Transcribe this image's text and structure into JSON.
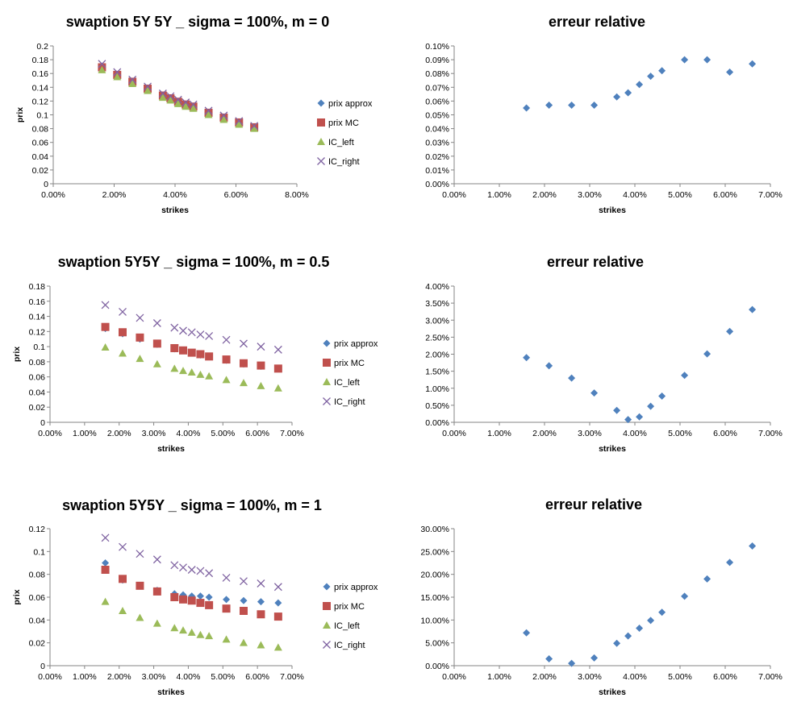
{
  "colors": {
    "prix_approx": "#4f81bd",
    "prix_MC": "#c0504d",
    "IC_left": "#9bbb59",
    "IC_right": "#8064a2",
    "axis": "#868686"
  },
  "chart_data": [
    {
      "type": "scatter",
      "title": "swaption 5Y 5Y _ sigma = 100%, m = 0",
      "xlabel": "strikes",
      "ylabel": "prix",
      "xlim": [
        0,
        0.08
      ],
      "ylim": [
        0,
        0.2
      ],
      "xticks": [
        "0.00%",
        "2.00%",
        "4.00%",
        "6.00%",
        "8.00%"
      ],
      "yticks": [
        "0",
        "0.02",
        "0.04",
        "0.06",
        "0.08",
        "0.1",
        "0.12",
        "0.14",
        "0.16",
        "0.18",
        "0.2"
      ],
      "legend": "right",
      "x": [
        0.016,
        0.021,
        0.026,
        0.031,
        0.036,
        0.0385,
        0.041,
        0.0435,
        0.046,
        0.051,
        0.056,
        0.061,
        0.066
      ],
      "series": [
        {
          "name": "prix approx",
          "marker": "diamond",
          "values": [
            0.169,
            0.158,
            0.148,
            0.138,
            0.128,
            0.124,
            0.119,
            0.115,
            0.112,
            0.103,
            0.096,
            0.089,
            0.082
          ]
        },
        {
          "name": "prix MC",
          "marker": "square",
          "values": [
            0.169,
            0.158,
            0.148,
            0.138,
            0.128,
            0.124,
            0.119,
            0.115,
            0.112,
            0.103,
            0.096,
            0.089,
            0.082
          ]
        },
        {
          "name": "IC_left",
          "marker": "triangle",
          "values": [
            0.165,
            0.155,
            0.145,
            0.135,
            0.125,
            0.121,
            0.116,
            0.112,
            0.109,
            0.1,
            0.093,
            0.086,
            0.08
          ]
        },
        {
          "name": "IC_right",
          "marker": "x",
          "values": [
            0.174,
            0.162,
            0.151,
            0.141,
            0.131,
            0.127,
            0.122,
            0.118,
            0.115,
            0.106,
            0.099,
            0.091,
            0.084
          ]
        }
      ]
    },
    {
      "type": "scatter",
      "title": "erreur relative",
      "xlabel": "strikes",
      "ylabel": "",
      "xlim": [
        0,
        0.07
      ],
      "ylim": [
        0,
        0.001
      ],
      "xticks": [
        "0.00%",
        "1.00%",
        "2.00%",
        "3.00%",
        "4.00%",
        "5.00%",
        "6.00%",
        "7.00%"
      ],
      "yticks": [
        "0.00%",
        "0.01%",
        "0.02%",
        "0.03%",
        "0.04%",
        "0.05%",
        "0.06%",
        "0.07%",
        "0.08%",
        "0.09%",
        "0.10%"
      ],
      "x": [
        0.016,
        0.021,
        0.026,
        0.031,
        0.036,
        0.0385,
        0.041,
        0.0435,
        0.046,
        0.051,
        0.056,
        0.061,
        0.066
      ],
      "series": [
        {
          "marker": "diamond",
          "values": [
            0.00055,
            0.00057,
            0.00057,
            0.00057,
            0.00063,
            0.00066,
            0.00072,
            0.00078,
            0.00082,
            0.0009,
            0.0009,
            0.00081,
            0.00087
          ]
        }
      ]
    },
    {
      "type": "scatter",
      "title": "swaption 5Y5Y _ sigma = 100%, m = 0.5",
      "xlabel": "strikes",
      "ylabel": "prix",
      "xlim": [
        0,
        0.07
      ],
      "ylim": [
        0,
        0.18
      ],
      "xticks": [
        "0.00%",
        "1.00%",
        "2.00%",
        "3.00%",
        "4.00%",
        "5.00%",
        "6.00%",
        "7.00%"
      ],
      "yticks": [
        "0",
        "0.02",
        "0.04",
        "0.06",
        "0.08",
        "0.1",
        "0.12",
        "0.14",
        "0.16",
        "0.18"
      ],
      "legend": "right",
      "x": [
        0.016,
        0.021,
        0.026,
        0.031,
        0.036,
        0.0385,
        0.041,
        0.0435,
        0.046,
        0.051,
        0.056,
        0.061,
        0.066
      ],
      "series": [
        {
          "name": "prix approx",
          "marker": "diamond",
          "values": [
            0.124,
            0.117,
            0.11,
            0.103,
            0.097,
            0.095,
            0.092,
            0.089,
            0.087,
            0.082,
            0.077,
            0.074,
            0.071
          ]
        },
        {
          "name": "prix MC",
          "marker": "square",
          "values": [
            0.126,
            0.119,
            0.112,
            0.104,
            0.098,
            0.095,
            0.092,
            0.09,
            0.087,
            0.083,
            0.078,
            0.075,
            0.071
          ]
        },
        {
          "name": "IC_left",
          "marker": "triangle",
          "values": [
            0.099,
            0.091,
            0.084,
            0.077,
            0.071,
            0.068,
            0.066,
            0.063,
            0.061,
            0.056,
            0.052,
            0.048,
            0.045
          ]
        },
        {
          "name": "IC_right",
          "marker": "x",
          "values": [
            0.155,
            0.146,
            0.138,
            0.131,
            0.125,
            0.121,
            0.119,
            0.116,
            0.114,
            0.109,
            0.104,
            0.1,
            0.096
          ]
        }
      ]
    },
    {
      "type": "scatter",
      "title": "erreur relative",
      "xlabel": "strikes",
      "ylabel": "",
      "xlim": [
        0,
        0.07
      ],
      "ylim": [
        0,
        0.04
      ],
      "xticks": [
        "0.00%",
        "1.00%",
        "2.00%",
        "3.00%",
        "4.00%",
        "5.00%",
        "6.00%",
        "7.00%"
      ],
      "yticks": [
        "0.00%",
        "0.50%",
        "1.00%",
        "1.50%",
        "2.00%",
        "2.50%",
        "3.00%",
        "3.50%",
        "4.00%"
      ],
      "x": [
        0.016,
        0.021,
        0.026,
        0.031,
        0.036,
        0.0385,
        0.041,
        0.0435,
        0.046,
        0.051,
        0.056,
        0.061,
        0.066
      ],
      "series": [
        {
          "marker": "diamond",
          "values": [
            0.019,
            0.0166,
            0.013,
            0.0086,
            0.0035,
            0.0008,
            0.0016,
            0.0047,
            0.0077,
            0.0138,
            0.0201,
            0.0267,
            0.0331
          ]
        }
      ]
    },
    {
      "type": "scatter",
      "title": "swaption 5Y5Y _ sigma = 100%, m = 1",
      "xlabel": "strikes",
      "ylabel": "prix",
      "xlim": [
        0,
        0.07
      ],
      "ylim": [
        0,
        0.12
      ],
      "xticks": [
        "0.00%",
        "1.00%",
        "2.00%",
        "3.00%",
        "4.00%",
        "5.00%",
        "6.00%",
        "7.00%"
      ],
      "yticks": [
        "0",
        "0.02",
        "0.04",
        "0.06",
        "0.08",
        "0.1",
        "0.12"
      ],
      "legend": "right",
      "x": [
        0.016,
        0.021,
        0.026,
        0.031,
        0.036,
        0.0385,
        0.041,
        0.0435,
        0.046,
        0.051,
        0.056,
        0.061,
        0.066
      ],
      "series": [
        {
          "name": "prix approx",
          "marker": "diamond",
          "values": [
            0.09,
            0.075,
            0.07,
            0.066,
            0.063,
            0.062,
            0.061,
            0.061,
            0.06,
            0.058,
            0.057,
            0.056,
            0.055
          ]
        },
        {
          "name": "prix MC",
          "marker": "square",
          "values": [
            0.084,
            0.076,
            0.07,
            0.065,
            0.06,
            0.058,
            0.057,
            0.055,
            0.053,
            0.05,
            0.048,
            0.045,
            0.043
          ]
        },
        {
          "name": "IC_left",
          "marker": "triangle",
          "values": [
            0.056,
            0.048,
            0.042,
            0.037,
            0.033,
            0.031,
            0.029,
            0.027,
            0.026,
            0.023,
            0.02,
            0.018,
            0.016
          ]
        },
        {
          "name": "IC_right",
          "marker": "x",
          "values": [
            0.112,
            0.104,
            0.098,
            0.093,
            0.088,
            0.086,
            0.084,
            0.083,
            0.081,
            0.077,
            0.074,
            0.072,
            0.069
          ]
        }
      ]
    },
    {
      "type": "scatter",
      "title": "erreur relative",
      "xlabel": "strikes",
      "ylabel": "",
      "xlim": [
        0,
        0.07
      ],
      "ylim": [
        0,
        0.3
      ],
      "xticks": [
        "0.00%",
        "1.00%",
        "2.00%",
        "3.00%",
        "4.00%",
        "5.00%",
        "6.00%",
        "7.00%"
      ],
      "yticks": [
        "0.00%",
        "5.00%",
        "10.00%",
        "15.00%",
        "20.00%",
        "25.00%",
        "30.00%"
      ],
      "x": [
        0.016,
        0.021,
        0.026,
        0.031,
        0.036,
        0.0385,
        0.041,
        0.0435,
        0.046,
        0.051,
        0.056,
        0.061,
        0.066
      ],
      "series": [
        {
          "marker": "diamond",
          "values": [
            0.072,
            0.015,
            0.005,
            0.017,
            0.049,
            0.065,
            0.082,
            0.099,
            0.117,
            0.152,
            0.19,
            0.226,
            0.262
          ]
        }
      ]
    }
  ]
}
